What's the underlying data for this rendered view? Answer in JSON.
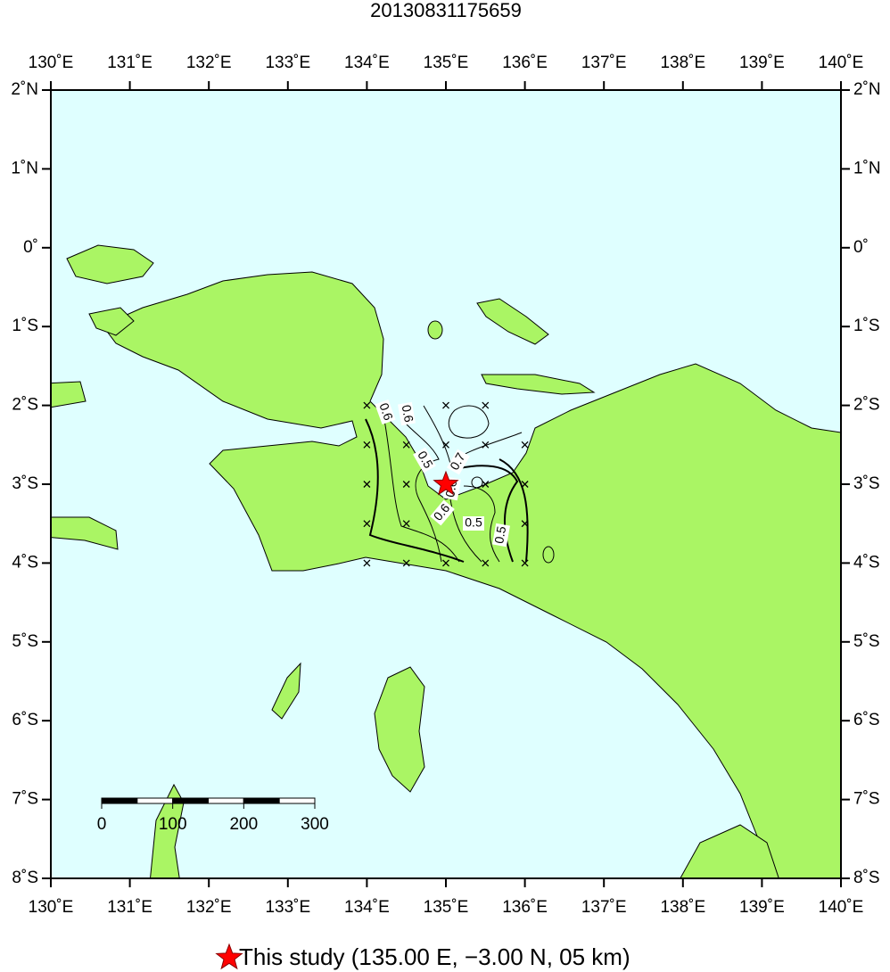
{
  "title": "20130831175659",
  "map": {
    "lonlim": [
      130,
      140
    ],
    "latlim": [
      -8,
      2
    ],
    "lon_ticks": [
      {
        "value": 130,
        "label": "130˚E"
      },
      {
        "value": 131,
        "label": "131˚E"
      },
      {
        "value": 132,
        "label": "132˚E"
      },
      {
        "value": 133,
        "label": "133˚E"
      },
      {
        "value": 134,
        "label": "134˚E"
      },
      {
        "value": 135,
        "label": "135˚E"
      },
      {
        "value": 136,
        "label": "136˚E"
      },
      {
        "value": 137,
        "label": "137˚E"
      },
      {
        "value": 138,
        "label": "138˚E"
      },
      {
        "value": 139,
        "label": "139˚E"
      },
      {
        "value": 140,
        "label": "140˚E"
      }
    ],
    "lat_ticks": [
      {
        "value": 2,
        "label": "2˚N"
      },
      {
        "value": 1,
        "label": "1˚N"
      },
      {
        "value": 0,
        "label": "0˚"
      },
      {
        "value": -1,
        "label": "1˚S"
      },
      {
        "value": -2,
        "label": "2˚S"
      },
      {
        "value": -3,
        "label": "3˚S"
      },
      {
        "value": -4,
        "label": "4˚S"
      },
      {
        "value": -5,
        "label": "5˚S"
      },
      {
        "value": -6,
        "label": "6˚S"
      },
      {
        "value": -7,
        "label": "7˚S"
      },
      {
        "value": -8,
        "label": "8˚S"
      }
    ],
    "epicenter": {
      "lon": 135,
      "lat": -3
    },
    "stations": [
      [
        134,
        -2
      ],
      [
        134,
        -2.5
      ],
      [
        134,
        -3
      ],
      [
        134,
        -3.5
      ],
      [
        134,
        -4
      ],
      [
        134.5,
        -2.5
      ],
      [
        134.5,
        -3
      ],
      [
        134.5,
        -3.5
      ],
      [
        134.5,
        -4
      ],
      [
        135,
        -2
      ],
      [
        135,
        -2.5
      ],
      [
        135,
        -3
      ],
      [
        135,
        -4
      ],
      [
        135.5,
        -2
      ],
      [
        135.5,
        -2.5
      ],
      [
        135.5,
        -3
      ],
      [
        135.5,
        -4
      ],
      [
        136,
        -2.5
      ],
      [
        136,
        -3
      ],
      [
        136,
        -3.5
      ],
      [
        136,
        -4
      ]
    ],
    "contour_labels": [
      "0.6",
      "0.6",
      "0.5",
      "0.7",
      "0.6",
      "0.5",
      "0.6",
      "0.5"
    ],
    "scale_bar": [
      0,
      100,
      200,
      300
    ]
  },
  "legend": "This study (135.00 E, −3.00 N, 05 km)"
}
